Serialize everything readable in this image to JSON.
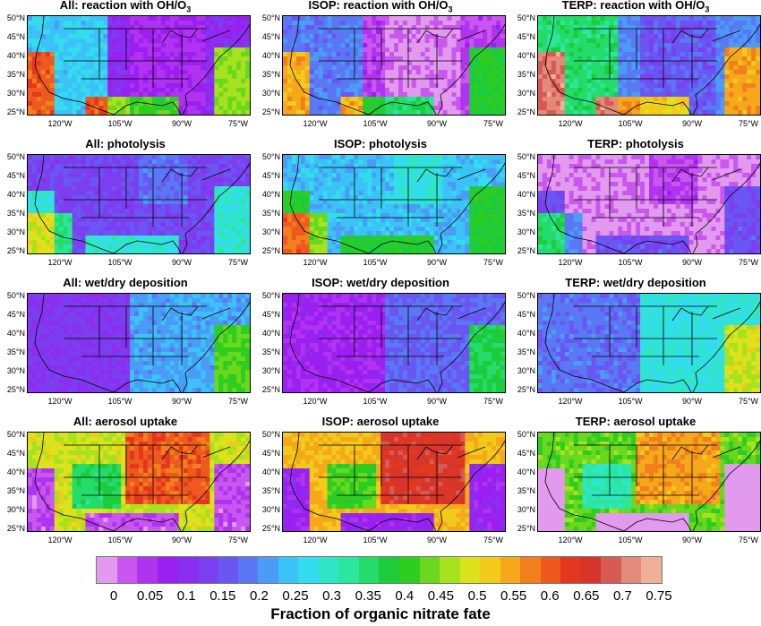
{
  "panels": [
    {
      "prefix": "All:",
      "label": "reaction with OH/O",
      "sub": "3",
      "pattern": "oh",
      "base": 0.12
    },
    {
      "prefix": "ISOP:",
      "label": "reaction with OH/O",
      "sub": "3",
      "pattern": "oh",
      "base": 0.06
    },
    {
      "prefix": "TERP:",
      "label": "reaction with OH/O",
      "sub": "3",
      "pattern": "oh",
      "base": 0.22
    },
    {
      "prefix": "All:",
      "label": "photolysis",
      "sub": "",
      "pattern": "photo",
      "base": 0.16
    },
    {
      "prefix": "ISOP:",
      "label": "photolysis",
      "sub": "",
      "pattern": "photo",
      "base": 0.26
    },
    {
      "prefix": "TERP:",
      "label": "photolysis",
      "sub": "",
      "pattern": "photo",
      "base": 0.02
    },
    {
      "prefix": "All:",
      "label": "wet/dry deposition",
      "sub": "",
      "pattern": "dep",
      "base": 0.14
    },
    {
      "prefix": "ISOP:",
      "label": "wet/dry deposition",
      "sub": "",
      "pattern": "dep",
      "base": 0.09
    },
    {
      "prefix": "TERP:",
      "label": "wet/dry deposition",
      "sub": "",
      "pattern": "dep",
      "base": 0.2
    },
    {
      "prefix": "All:",
      "label": "aerosol uptake",
      "sub": "",
      "pattern": "aer",
      "base": 0.5
    },
    {
      "prefix": "ISOP:",
      "label": "aerosol uptake",
      "sub": "",
      "pattern": "aer",
      "base": 0.55
    },
    {
      "prefix": "TERP:",
      "label": "aerosol uptake",
      "sub": "",
      "pattern": "aer",
      "base": 0.45
    }
  ],
  "lat_labels": [
    "50°N",
    "45°N",
    "40°N",
    "35°N",
    "30°N",
    "25°N"
  ],
  "lon_labels": [
    "120°W",
    "105°W",
    "90°W",
    "75°W"
  ],
  "colorbar": {
    "colors": [
      "#e29aee",
      "#c957ef",
      "#b033f0",
      "#9a1ff0",
      "#8a2ef0",
      "#7b3ff0",
      "#6a56f2",
      "#5a78f4",
      "#4a9cf6",
      "#3bc3f8",
      "#33dded",
      "#2fe6c6",
      "#2be69c",
      "#23dc6a",
      "#1ccc3c",
      "#2ecd20",
      "#6ad81e",
      "#a6e21e",
      "#dde21c",
      "#f2cb1a",
      "#f5a81a",
      "#f27e1c",
      "#ee5a1e",
      "#e3381e",
      "#d6352c",
      "#d85a55",
      "#e38a7a",
      "#efb09a"
    ],
    "ticks": [
      "0",
      "0.05",
      "0.1",
      "0.15",
      "0.2",
      "0.25",
      "0.3",
      "0.35",
      "0.4",
      "0.45",
      "0.5",
      "0.55",
      "0.6",
      "0.65",
      "0.7",
      "0.75"
    ],
    "title": "Fraction of organic nitrate fate"
  }
}
